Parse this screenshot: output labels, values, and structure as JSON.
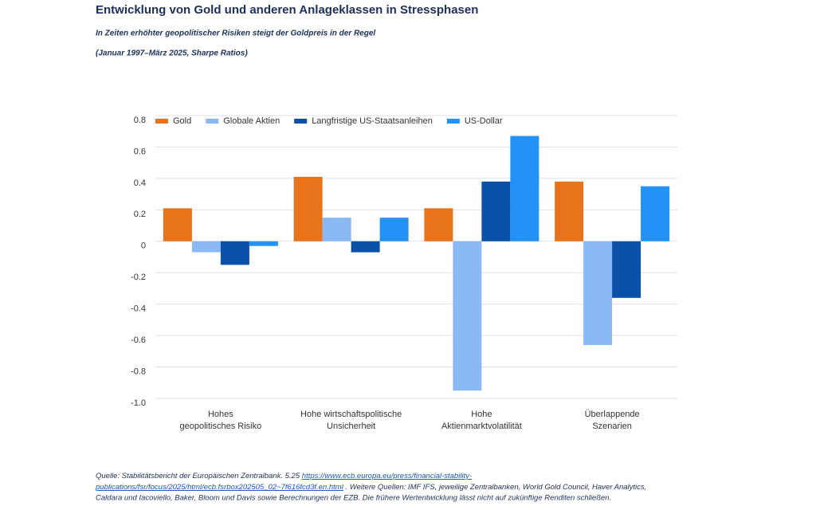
{
  "chart_data": {
    "type": "bar",
    "title": "Entwicklung von Gold und anderen Anlageklassen in Stressphasen",
    "subtitle": "In Zeiten erhöhter geopolitischer Risiken steigt der Goldpreis in der Regel",
    "note": "(Januar 1997–März 2025, Sharpe Ratios)",
    "categories": [
      [
        "Hohes",
        "geopolitisches Risiko"
      ],
      [
        "Hohe wirtschaftspolitische",
        "Unsicherheit"
      ],
      [
        "Hohe",
        "Aktienmarktvolatilität"
      ],
      [
        "Überlappende",
        "Szenarien"
      ]
    ],
    "series": [
      {
        "name": "Gold",
        "color": "#e8731a",
        "values": [
          0.21,
          0.41,
          0.21,
          0.38
        ]
      },
      {
        "name": "Globale Aktien",
        "color": "#8ab8f5",
        "values": [
          -0.07,
          0.15,
          -0.95,
          -0.66
        ]
      },
      {
        "name": "Langfristige US-Staatsanleihen",
        "color": "#0a4fa8",
        "values": [
          -0.15,
          -0.07,
          0.38,
          -0.36
        ]
      },
      {
        "name": "US-Dollar",
        "color": "#2391f5",
        "values": [
          -0.03,
          0.15,
          0.67,
          0.35
        ]
      }
    ],
    "ylim": [
      -1.0,
      0.8
    ],
    "yticks": [
      0.8,
      0.6,
      0.4,
      0.2,
      0,
      -0.2,
      -0.4,
      -0.6,
      -0.8,
      {
        "value": -1.0,
        "label": "-1.0"
      }
    ],
    "grid": true,
    "legend": "top"
  },
  "footnote": {
    "lines": [
      {
        "text": "Quelle: Stabilitätsbericht der Europäischen Zentralbank. 5.25 ",
        "link": "https://www.ecb.europa.eu/press/financial-stability-"
      },
      {
        "link": "publications/fsr/focus/2025/html/ecb.fsrbox202505_02~7f616fcd3f.en.html",
        "text": " . Weitere Quellen: IMF IFS, jeweilige Zentralbanken, World Gold Council, Haver Analytics,"
      },
      {
        "text": "Caldara und Iacoviello, Baker, Bloom und Davis sowie Berechnungen der EZB. Die frühere Wertentwicklung lässt nicht auf zukünftige Renditen schließen."
      }
    ]
  }
}
